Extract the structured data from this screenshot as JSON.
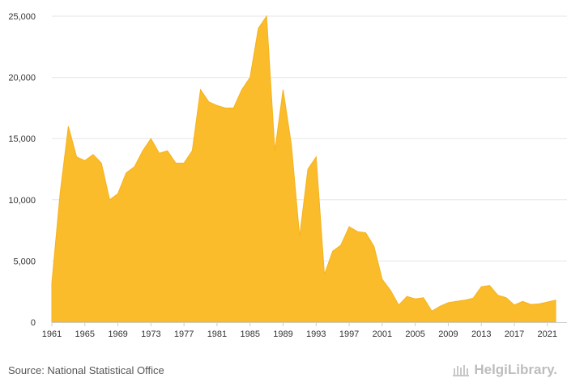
{
  "source": "Source: National Statistical Office",
  "brand": "HelgiLibrary.",
  "colors": {
    "area": "#fbbc2b",
    "area_stroke": "#f5b21c",
    "grid": "#e6e6e6",
    "text": "#333333"
  },
  "chart_data": {
    "type": "area",
    "title": "",
    "xlabel": "",
    "ylabel": "",
    "ylim": [
      0,
      25000
    ],
    "xlim": [
      1961,
      2022
    ],
    "grid": "horizontal",
    "y_ticks": [
      0,
      5000,
      10000,
      15000,
      20000,
      25000
    ],
    "y_tick_labels": [
      "0",
      "5,000",
      "10,000",
      "15,000",
      "20,000",
      "25,000"
    ],
    "x_ticks": [
      1961,
      1965,
      1969,
      1973,
      1977,
      1981,
      1985,
      1989,
      1993,
      1997,
      2001,
      2005,
      2009,
      2013,
      2017,
      2021
    ],
    "x_tick_labels": [
      "1961",
      "1965",
      "1969",
      "1973",
      "1977",
      "1981",
      "1985",
      "1989",
      "1993",
      "1997",
      "2001",
      "2005",
      "2009",
      "2013",
      "2017",
      "2021"
    ],
    "series": [
      {
        "x": [
          1961,
          1962,
          1963,
          1964,
          1965,
          1966,
          1967,
          1968,
          1969,
          1970,
          1971,
          1972,
          1973,
          1974,
          1975,
          1976,
          1977,
          1978,
          1979,
          1980,
          1981,
          1982,
          1983,
          1984,
          1985,
          1986,
          1987,
          1988,
          1989,
          1990,
          1991,
          1992,
          1993,
          1994,
          1995,
          1996,
          1997,
          1998,
          1999,
          2000,
          2001,
          2002,
          2003,
          2004,
          2005,
          2006,
          2007,
          2008,
          2009,
          2010,
          2011,
          2012,
          2013,
          2014,
          2015,
          2016,
          2017,
          2018,
          2019,
          2020,
          2021,
          2022
        ],
        "values": [
          3200,
          10500,
          16000,
          13500,
          13200,
          13700,
          13000,
          10000,
          10500,
          12200,
          12700,
          14000,
          15000,
          13800,
          14000,
          13000,
          13000,
          14000,
          19000,
          18000,
          17700,
          17500,
          17500,
          19000,
          20000,
          24000,
          25000,
          14000,
          19000,
          14500,
          7000,
          12500,
          13500,
          3900,
          5800,
          6300,
          7800,
          7400,
          7300,
          6200,
          3500,
          2600,
          1400,
          2100,
          1900,
          2000,
          900,
          1300,
          1600,
          1700,
          1800,
          1950,
          2900,
          3000,
          2200,
          2000,
          1400,
          1700,
          1450,
          1500,
          1650,
          1800
        ]
      }
    ]
  }
}
